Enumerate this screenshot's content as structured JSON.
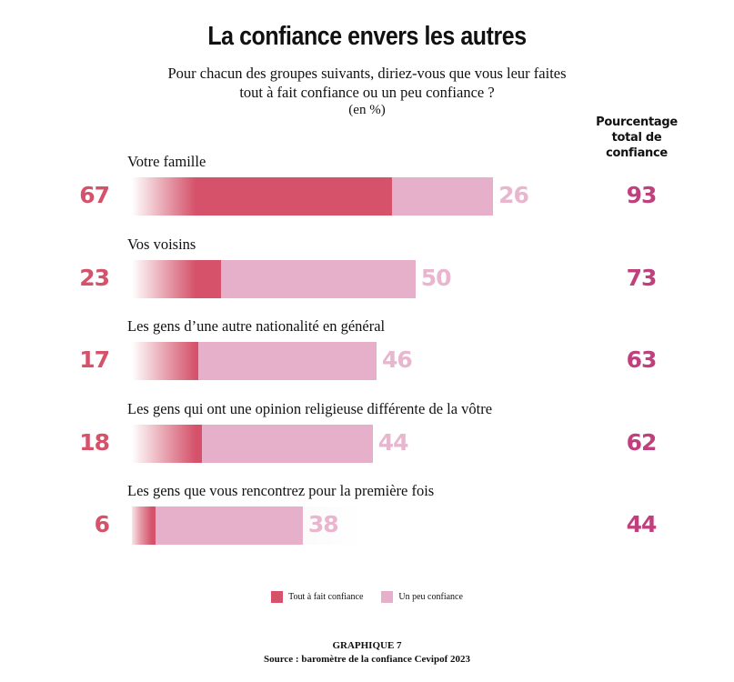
{
  "header": {
    "title": "La confiance envers les autres",
    "subtitle_line1": "Pour chacun des groupes suivants, diriez-vous que vous leur faites",
    "subtitle_line2": "tout à fait confiance ou un peu confiance ?",
    "unit": "(en %)",
    "total_header_line1": "Pourcentage",
    "total_header_line2": "total de",
    "total_header_line3": "confiance"
  },
  "legend": {
    "full": "Tout à fait confiance",
    "some": "Un peu confiance"
  },
  "footer": {
    "line1": "GRAPHIQUE 7",
    "line2": "Source : baromètre de la confiance Cevipof 2023"
  },
  "colors": {
    "full": "#d5526a",
    "some": "#e6b0cb",
    "total": "#c0407e"
  },
  "chart_data": {
    "type": "bar",
    "orientation": "horizontal",
    "stacked": true,
    "title": "La confiance envers les autres",
    "subtitle": "Pour chacun des groupes suivants, diriez-vous que vous leur faites tout à fait confiance ou un peu confiance ?",
    "unit": "(en %)",
    "categories": [
      "Votre famille",
      "Vos voisins",
      "Les gens d’une autre nationalité en général",
      "Les gens qui ont une opinion religieuse différente de la vôtre",
      "Les gens que vous rencontrez pour la première fois"
    ],
    "series": [
      {
        "name": "Tout à fait confiance",
        "values": [
          67,
          23,
          17,
          18,
          6
        ]
      },
      {
        "name": "Un peu confiance",
        "values": [
          26,
          50,
          46,
          44,
          38
        ]
      }
    ],
    "totals": [
      93,
      73,
      63,
      62,
      44
    ],
    "totals_label": "Pourcentage total de confiance",
    "xlim": [
      0,
      100
    ],
    "grid": false,
    "legend_position": "bottom-center"
  }
}
